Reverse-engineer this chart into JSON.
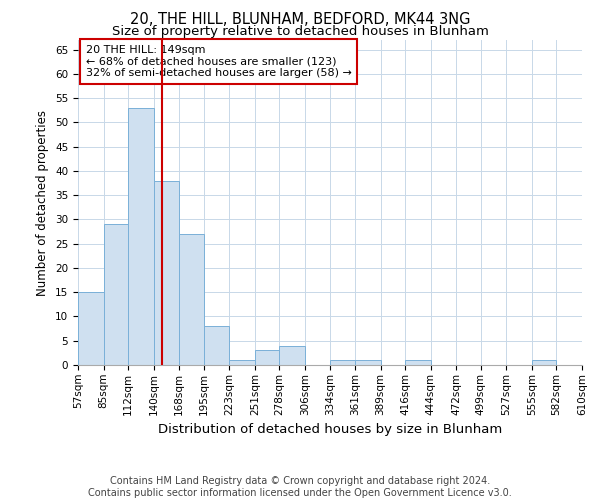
{
  "title": "20, THE HILL, BLUNHAM, BEDFORD, MK44 3NG",
  "subtitle": "Size of property relative to detached houses in Blunham",
  "xlabel": "Distribution of detached houses by size in Blunham",
  "ylabel": "Number of detached properties",
  "bar_color": "#cfe0f0",
  "bar_edge_color": "#7ab0d8",
  "grid_color": "#c8d8e8",
  "background_color": "#ffffff",
  "vline_x": 149,
  "vline_color": "#cc0000",
  "annotation_text": "20 THE HILL: 149sqm\n← 68% of detached houses are smaller (123)\n32% of semi-detached houses are larger (58) →",
  "annotation_box_color": "#ffffff",
  "annotation_box_edge": "#cc0000",
  "bin_edges": [
    57,
    85,
    112,
    140,
    168,
    195,
    223,
    251,
    278,
    306,
    334,
    361,
    389,
    416,
    444,
    472,
    499,
    527,
    555,
    582,
    610
  ],
  "bar_heights": [
    15,
    29,
    53,
    38,
    27,
    8,
    1,
    3,
    4,
    0,
    1,
    1,
    0,
    1,
    0,
    0,
    0,
    0,
    1,
    0
  ],
  "xlim": [
    57,
    610
  ],
  "ylim": [
    0,
    67
  ],
  "yticks": [
    0,
    5,
    10,
    15,
    20,
    25,
    30,
    35,
    40,
    45,
    50,
    55,
    60,
    65
  ],
  "footer_text": "Contains HM Land Registry data © Crown copyright and database right 2024.\nContains public sector information licensed under the Open Government Licence v3.0.",
  "title_fontsize": 10.5,
  "subtitle_fontsize": 9.5,
  "xlabel_fontsize": 9.5,
  "ylabel_fontsize": 8.5,
  "tick_fontsize": 7.5,
  "footer_fontsize": 7,
  "annot_fontsize": 8
}
